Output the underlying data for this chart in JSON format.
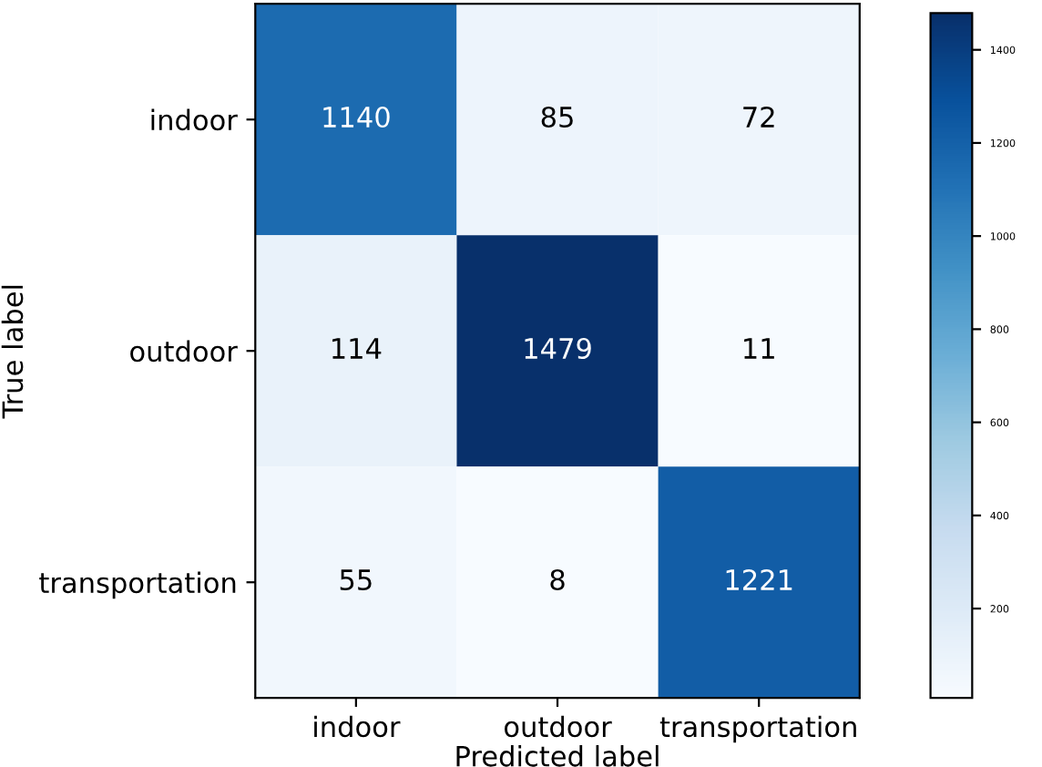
{
  "chart_data": {
    "type": "heatmap",
    "xlabel": "Predicted label",
    "ylabel": "True label",
    "categories": [
      "indoor",
      "outdoor",
      "transportation"
    ],
    "y_categories": [
      "indoor",
      "outdoor",
      "transportation"
    ],
    "cells": [
      [
        1140,
        85,
        72
      ],
      [
        114,
        1479,
        11
      ],
      [
        55,
        8,
        1221
      ]
    ],
    "data_labels": true,
    "clim": [
      8,
      1479
    ],
    "cticks": [
      200,
      400,
      600,
      800,
      1000,
      1200,
      1400
    ]
  }
}
